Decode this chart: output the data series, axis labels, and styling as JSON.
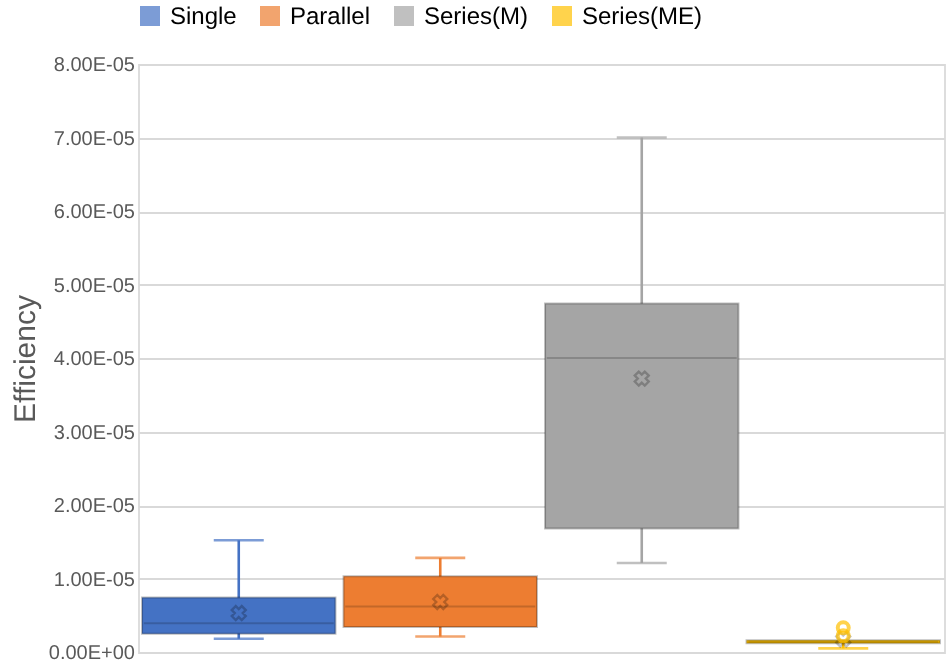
{
  "chart_data": {
    "type": "box",
    "ylabel": "Efficiency",
    "categories": [
      null
    ],
    "series": [
      {
        "name": "Single",
        "color": "#4472c4",
        "boxes": [
          {
            "low": 1.8e-06,
            "q1": 2.5e-06,
            "median": 3.9e-06,
            "q3": 7.4e-06,
            "high": 1.52e-05,
            "mean": 5.3e-06
          }
        ]
      },
      {
        "name": "Parallel",
        "color": "#ed7d31",
        "boxes": [
          {
            "low": 2.1e-06,
            "q1": 3.4e-06,
            "median": 6.2e-06,
            "q3": 1.03e-05,
            "high": 1.28e-05,
            "mean": 6.8e-06
          }
        ]
      },
      {
        "name": "Series(M)",
        "color": "#a5a5a5",
        "boxes": [
          {
            "low": 1.21e-05,
            "q1": 1.68e-05,
            "median": 4e-05,
            "q3": 4.74e-05,
            "high": 7e-05,
            "mean": 3.72e-05
          }
        ]
      },
      {
        "name": "Series(ME)",
        "color": "#ffc000",
        "boxes": [
          {
            "low": 5e-07,
            "q1": 1.2e-06,
            "median": 1.4e-06,
            "q3": 1.6e-06,
            "high": 1.6e-06,
            "mean": 1.7e-06,
            "outliers": [
              3.3e-06,
              2.2e-06
            ]
          }
        ]
      }
    ],
    "ylim": [
      0,
      8e-05
    ],
    "yticks": [
      {
        "value": 0,
        "label": "0.00E+00"
      },
      {
        "value": 1e-05,
        "label": "1.00E-05"
      },
      {
        "value": 2e-05,
        "label": "2.00E-05"
      },
      {
        "value": 3e-05,
        "label": "3.00E-05"
      },
      {
        "value": 4e-05,
        "label": "4.00E-05"
      },
      {
        "value": 5e-05,
        "label": "5.00E-05"
      },
      {
        "value": 6e-05,
        "label": "6.00E-05"
      },
      {
        "value": 7e-05,
        "label": "7.00E-05"
      },
      {
        "value": 8e-05,
        "label": "8.00E-05"
      }
    ],
    "grid": "y",
    "legend": "top",
    "marker": "cross"
  }
}
